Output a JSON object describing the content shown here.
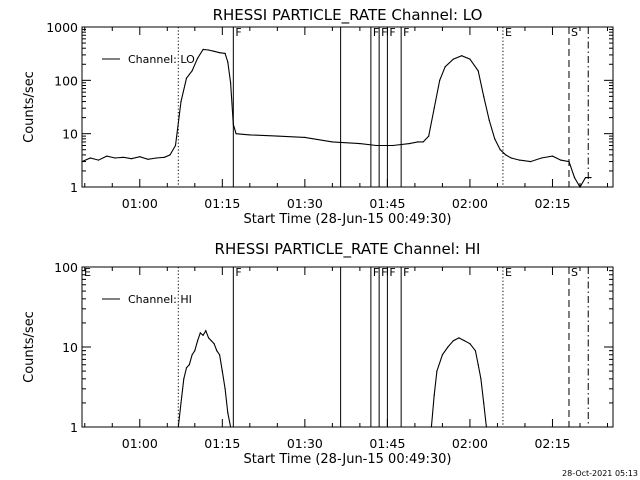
{
  "chart_data": [
    {
      "type": "line",
      "title": "RHESSI PARTICLE_RATE Channel: LO",
      "xlabel": "Start Time (28-Jun-15 00:49:30)",
      "ylabel": "Counts/sec",
      "x_tick_labels": [
        "01:00",
        "01:15",
        "01:30",
        "01:45",
        "02:00",
        "02:15"
      ],
      "y_tick_labels": [
        "1",
        "10",
        "100",
        "1000"
      ],
      "y_scale": "log",
      "ylim": [
        1,
        1000
      ],
      "xlim": [
        "00:49:30",
        "02:26:00"
      ],
      "legend": {
        "label": "Channel: LO",
        "position": "top-left"
      },
      "markers": [
        {
          "label": "",
          "time": "00:49:30",
          "style": "solid"
        },
        {
          "label": "",
          "time": "01:07:00",
          "style": "dotted"
        },
        {
          "label": "F",
          "time": "01:17:00",
          "style": "solid"
        },
        {
          "label": "",
          "time": "01:36:30",
          "style": "solid"
        },
        {
          "label": "F",
          "time": "01:42:00",
          "style": "solid"
        },
        {
          "label": "F",
          "time": "01:43:30",
          "style": "solid"
        },
        {
          "label": "F",
          "time": "01:45:00",
          "style": "solid"
        },
        {
          "label": "F",
          "time": "01:47:30",
          "style": "solid"
        },
        {
          "label": "E",
          "time": "02:06:00",
          "style": "dotted"
        },
        {
          "label": "S",
          "time": "02:18:00",
          "style": "dashed"
        },
        {
          "label": "",
          "time": "02:21:30",
          "style": "dashdot"
        }
      ],
      "series": [
        {
          "name": "Channel: LO",
          "x": [
            "00:49:30",
            "00:51:00",
            "00:52:30",
            "00:54:00",
            "00:55:30",
            "00:57:00",
            "00:58:30",
            "01:00:00",
            "01:01:30",
            "01:03:00",
            "01:04:30",
            "01:05:30",
            "01:06:30",
            "01:07:30",
            "01:08:30",
            "01:09:30",
            "01:10:30",
            "01:11:30",
            "01:12:30",
            "01:13:30",
            "01:14:30",
            "01:15:30",
            "01:16:00",
            "01:16:30",
            "01:17:00",
            "01:17:30",
            "01:20:00",
            "01:25:00",
            "01:30:00",
            "01:35:00",
            "01:40:00",
            "01:43:00",
            "01:46:00",
            "01:49:00",
            "01:50:30",
            "01:51:30",
            "01:52:30",
            "01:53:30",
            "01:54:30",
            "01:55:30",
            "01:57:00",
            "01:58:30",
            "02:00:00",
            "02:01:30",
            "02:02:30",
            "02:03:30",
            "02:04:30",
            "02:05:30",
            "02:06:30",
            "02:07:30",
            "02:09:00",
            "02:11:00",
            "02:13:00",
            "02:15:00",
            "02:16:30",
            "02:18:00",
            "02:19:00",
            "02:20:00",
            "02:21:00",
            "02:22:00"
          ],
          "values": [
            3,
            3.5,
            3.2,
            3.8,
            3.5,
            3.6,
            3.4,
            3.7,
            3.3,
            3.5,
            3.6,
            4,
            6,
            40,
            110,
            150,
            260,
            380,
            370,
            350,
            330,
            320,
            220,
            90,
            15,
            10,
            9.5,
            9,
            8.5,
            7,
            6.5,
            6,
            6,
            6.5,
            7,
            7,
            9,
            30,
            100,
            180,
            250,
            290,
            250,
            150,
            50,
            18,
            8,
            5,
            4,
            3.5,
            3.2,
            3,
            3.5,
            3.8,
            3.2,
            3,
            1.5,
            1,
            1.5,
            1.5
          ]
        }
      ]
    },
    {
      "type": "line",
      "title": "RHESSI PARTICLE_RATE Channel: HI",
      "xlabel": "Start Time (28-Jun-15 00:49:30)",
      "ylabel": "Counts/sec",
      "x_tick_labels": [
        "01:00",
        "01:15",
        "01:30",
        "01:45",
        "02:00",
        "02:15"
      ],
      "y_tick_labels": [
        "1",
        "10",
        "100"
      ],
      "y_scale": "log",
      "ylim": [
        1,
        100
      ],
      "xlim": [
        "00:49:30",
        "02:26:00"
      ],
      "legend": {
        "label": "Channel: HI",
        "position": "top-left"
      },
      "markers": [
        {
          "label": "E",
          "time": "00:49:30",
          "style": "solid"
        },
        {
          "label": "",
          "time": "01:07:00",
          "style": "dotted"
        },
        {
          "label": "F",
          "time": "01:17:00",
          "style": "solid"
        },
        {
          "label": "",
          "time": "01:36:30",
          "style": "solid"
        },
        {
          "label": "F",
          "time": "01:42:00",
          "style": "solid"
        },
        {
          "label": "F",
          "time": "01:43:30",
          "style": "solid"
        },
        {
          "label": "F",
          "time": "01:45:00",
          "style": "solid"
        },
        {
          "label": "F",
          "time": "01:47:30",
          "style": "solid"
        },
        {
          "label": "E",
          "time": "02:06:00",
          "style": "dotted"
        },
        {
          "label": "S",
          "time": "02:18:00",
          "style": "dashed"
        },
        {
          "label": "",
          "time": "02:21:30",
          "style": "dashdot"
        }
      ],
      "series": [
        {
          "name": "Channel: HI",
          "x": [
            "01:07:00",
            "01:07:30",
            "01:08:00",
            "01:08:30",
            "01:09:00",
            "01:09:30",
            "01:10:00",
            "01:10:30",
            "01:11:00",
            "01:11:30",
            "01:12:00",
            "01:12:30",
            "01:13:00",
            "01:13:30",
            "01:14:00",
            "01:14:30",
            "01:15:00",
            "01:15:30",
            "01:16:00",
            "01:16:30",
            "01:53:00",
            "01:53:30",
            "01:54:00",
            "01:55:00",
            "01:56:00",
            "01:57:00",
            "01:58:00",
            "01:59:00",
            "02:00:00",
            "02:01:00",
            "02:01:30",
            "02:02:00",
            "02:02:30",
            "02:03:00"
          ],
          "values": [
            1,
            2,
            4,
            5.5,
            6,
            8,
            9,
            12,
            15,
            14,
            16,
            13,
            12,
            11,
            9,
            8,
            5,
            3,
            1.5,
            1,
            1,
            2.5,
            5,
            8,
            10,
            12,
            13,
            12,
            11,
            9,
            6,
            4,
            2,
            1
          ]
        }
      ]
    }
  ],
  "timestamp": "28-Oct-2021 05:13"
}
